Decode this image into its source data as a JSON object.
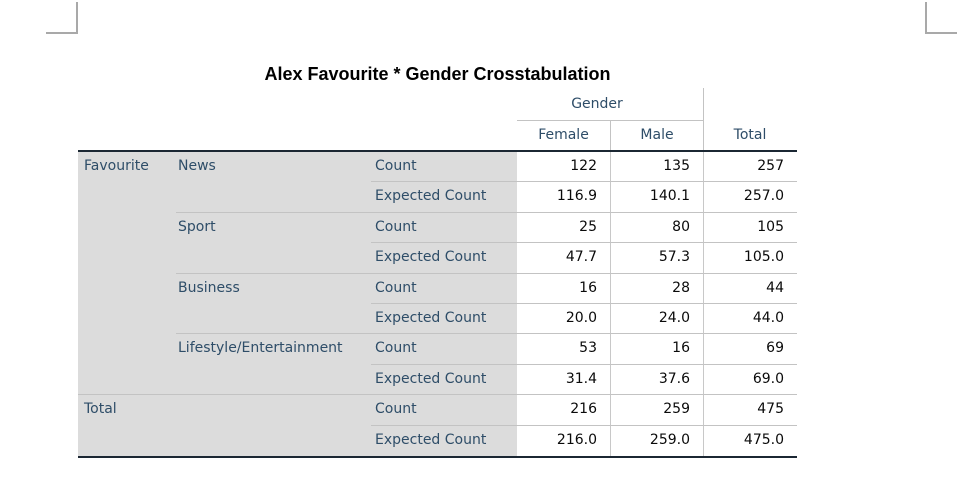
{
  "page": {
    "title": "Alex Favourite * Gender Crosstabulation"
  },
  "colors": {
    "label_text": "#2e4d68",
    "value_text": "#0a0a0a",
    "stub_background": "#dcdcdc",
    "heavy_rule": "#1b2733",
    "light_rule": "#c3c3c3",
    "margin_mark": "#a9a9a9"
  },
  "crosstab": {
    "column_dimension": "Gender",
    "columns": [
      "Female",
      "Male",
      "Total"
    ],
    "rows": [
      {
        "dim": "Favourite",
        "category": "News",
        "stat": "Count",
        "female": "122",
        "male": "135",
        "total": "257"
      },
      {
        "dim": "",
        "category": "",
        "stat": "Expected Count",
        "female": "116.9",
        "male": "140.1",
        "total": "257.0"
      },
      {
        "dim": "",
        "category": "Sport",
        "stat": "Count",
        "female": "25",
        "male": "80",
        "total": "105"
      },
      {
        "dim": "",
        "category": "",
        "stat": "Expected Count",
        "female": "47.7",
        "male": "57.3",
        "total": "105.0"
      },
      {
        "dim": "",
        "category": "Business",
        "stat": "Count",
        "female": "16",
        "male": "28",
        "total": "44"
      },
      {
        "dim": "",
        "category": "",
        "stat": "Expected Count",
        "female": "20.0",
        "male": "24.0",
        "total": "44.0"
      },
      {
        "dim": "",
        "category": "Lifestyle/Entertainment",
        "stat": "Count",
        "female": "53",
        "male": "16",
        "total": "69"
      },
      {
        "dim": "",
        "category": "",
        "stat": "Expected Count",
        "female": "31.4",
        "male": "37.6",
        "total": "69.0"
      },
      {
        "dim": "Total",
        "category": "",
        "stat": "Count",
        "female": "216",
        "male": "259",
        "total": "475"
      },
      {
        "dim": "",
        "category": "",
        "stat": "Expected Count",
        "female": "216.0",
        "male": "259.0",
        "total": "475.0"
      }
    ]
  }
}
